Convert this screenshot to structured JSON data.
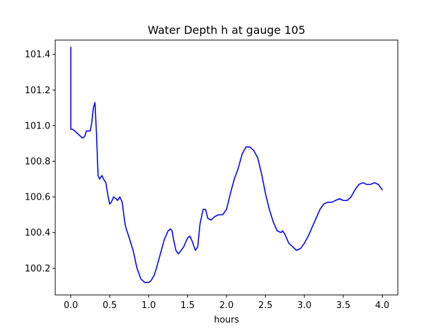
{
  "chart_data": {
    "type": "line",
    "title": "Water Depth h at gauge 105",
    "xlabel": "hours",
    "ylabel": "",
    "xlim": [
      -0.2,
      4.2
    ],
    "ylim": [
      100.05,
      101.48
    ],
    "x_ticks": [
      0.0,
      0.5,
      1.0,
      1.5,
      2.0,
      2.5,
      3.0,
      3.5,
      4.0
    ],
    "x_tick_labels": [
      "0.0",
      "0.5",
      "1.0",
      "1.5",
      "2.0",
      "2.5",
      "3.0",
      "3.5",
      "4.0"
    ],
    "y_ticks": [
      100.2,
      100.4,
      100.6,
      100.8,
      101.0,
      101.2,
      101.4
    ],
    "y_tick_labels": [
      "100.2",
      "100.4",
      "100.6",
      "100.8",
      "101.0",
      "101.2",
      "101.4"
    ],
    "grid": false,
    "series": [
      {
        "color": "#0000ff",
        "x": [
          0.0,
          0.0,
          0.02,
          0.05,
          0.1,
          0.15,
          0.18,
          0.2,
          0.22,
          0.25,
          0.27,
          0.29,
          0.31,
          0.33,
          0.35,
          0.37,
          0.4,
          0.42,
          0.45,
          0.48,
          0.5,
          0.52,
          0.55,
          0.58,
          0.6,
          0.63,
          0.66,
          0.68,
          0.7,
          0.72,
          0.75,
          0.8,
          0.85,
          0.9,
          0.95,
          1.0,
          1.03,
          1.07,
          1.1,
          1.15,
          1.2,
          1.25,
          1.28,
          1.3,
          1.32,
          1.35,
          1.38,
          1.4,
          1.45,
          1.5,
          1.53,
          1.56,
          1.6,
          1.63,
          1.66,
          1.7,
          1.73,
          1.76,
          1.8,
          1.85,
          1.9,
          1.95,
          2.0,
          2.05,
          2.1,
          2.15,
          2.2,
          2.25,
          2.3,
          2.35,
          2.4,
          2.45,
          2.5,
          2.55,
          2.6,
          2.65,
          2.7,
          2.72,
          2.75,
          2.8,
          2.85,
          2.9,
          2.95,
          3.0,
          3.05,
          3.1,
          3.15,
          3.2,
          3.25,
          3.3,
          3.35,
          3.4,
          3.45,
          3.5,
          3.55,
          3.6,
          3.65,
          3.7,
          3.75,
          3.8,
          3.85,
          3.9,
          3.95,
          4.0
        ],
        "y": [
          101.44,
          100.98,
          100.98,
          100.97,
          100.95,
          100.93,
          100.94,
          100.97,
          100.97,
          100.97,
          101.02,
          101.1,
          101.13,
          100.95,
          100.72,
          100.7,
          100.72,
          100.7,
          100.68,
          100.6,
          100.56,
          100.57,
          100.6,
          100.59,
          100.58,
          100.6,
          100.57,
          100.5,
          100.44,
          100.41,
          100.37,
          100.3,
          100.2,
          100.14,
          100.12,
          100.12,
          100.13,
          100.16,
          100.2,
          100.28,
          100.36,
          100.41,
          100.42,
          100.41,
          100.36,
          100.3,
          100.28,
          100.29,
          100.32,
          100.37,
          100.38,
          100.35,
          100.3,
          100.32,
          100.45,
          100.53,
          100.53,
          100.48,
          100.47,
          100.49,
          100.5,
          100.5,
          100.53,
          100.62,
          100.7,
          100.76,
          100.84,
          100.88,
          100.88,
          100.86,
          100.82,
          100.73,
          100.62,
          100.53,
          100.46,
          100.41,
          100.4,
          100.41,
          100.39,
          100.34,
          100.32,
          100.3,
          100.31,
          100.34,
          100.38,
          100.43,
          100.48,
          100.53,
          100.56,
          100.57,
          100.57,
          100.58,
          100.59,
          100.58,
          100.58,
          100.6,
          100.64,
          100.67,
          100.68,
          100.67,
          100.67,
          100.68,
          100.67,
          100.64
        ]
      }
    ]
  }
}
